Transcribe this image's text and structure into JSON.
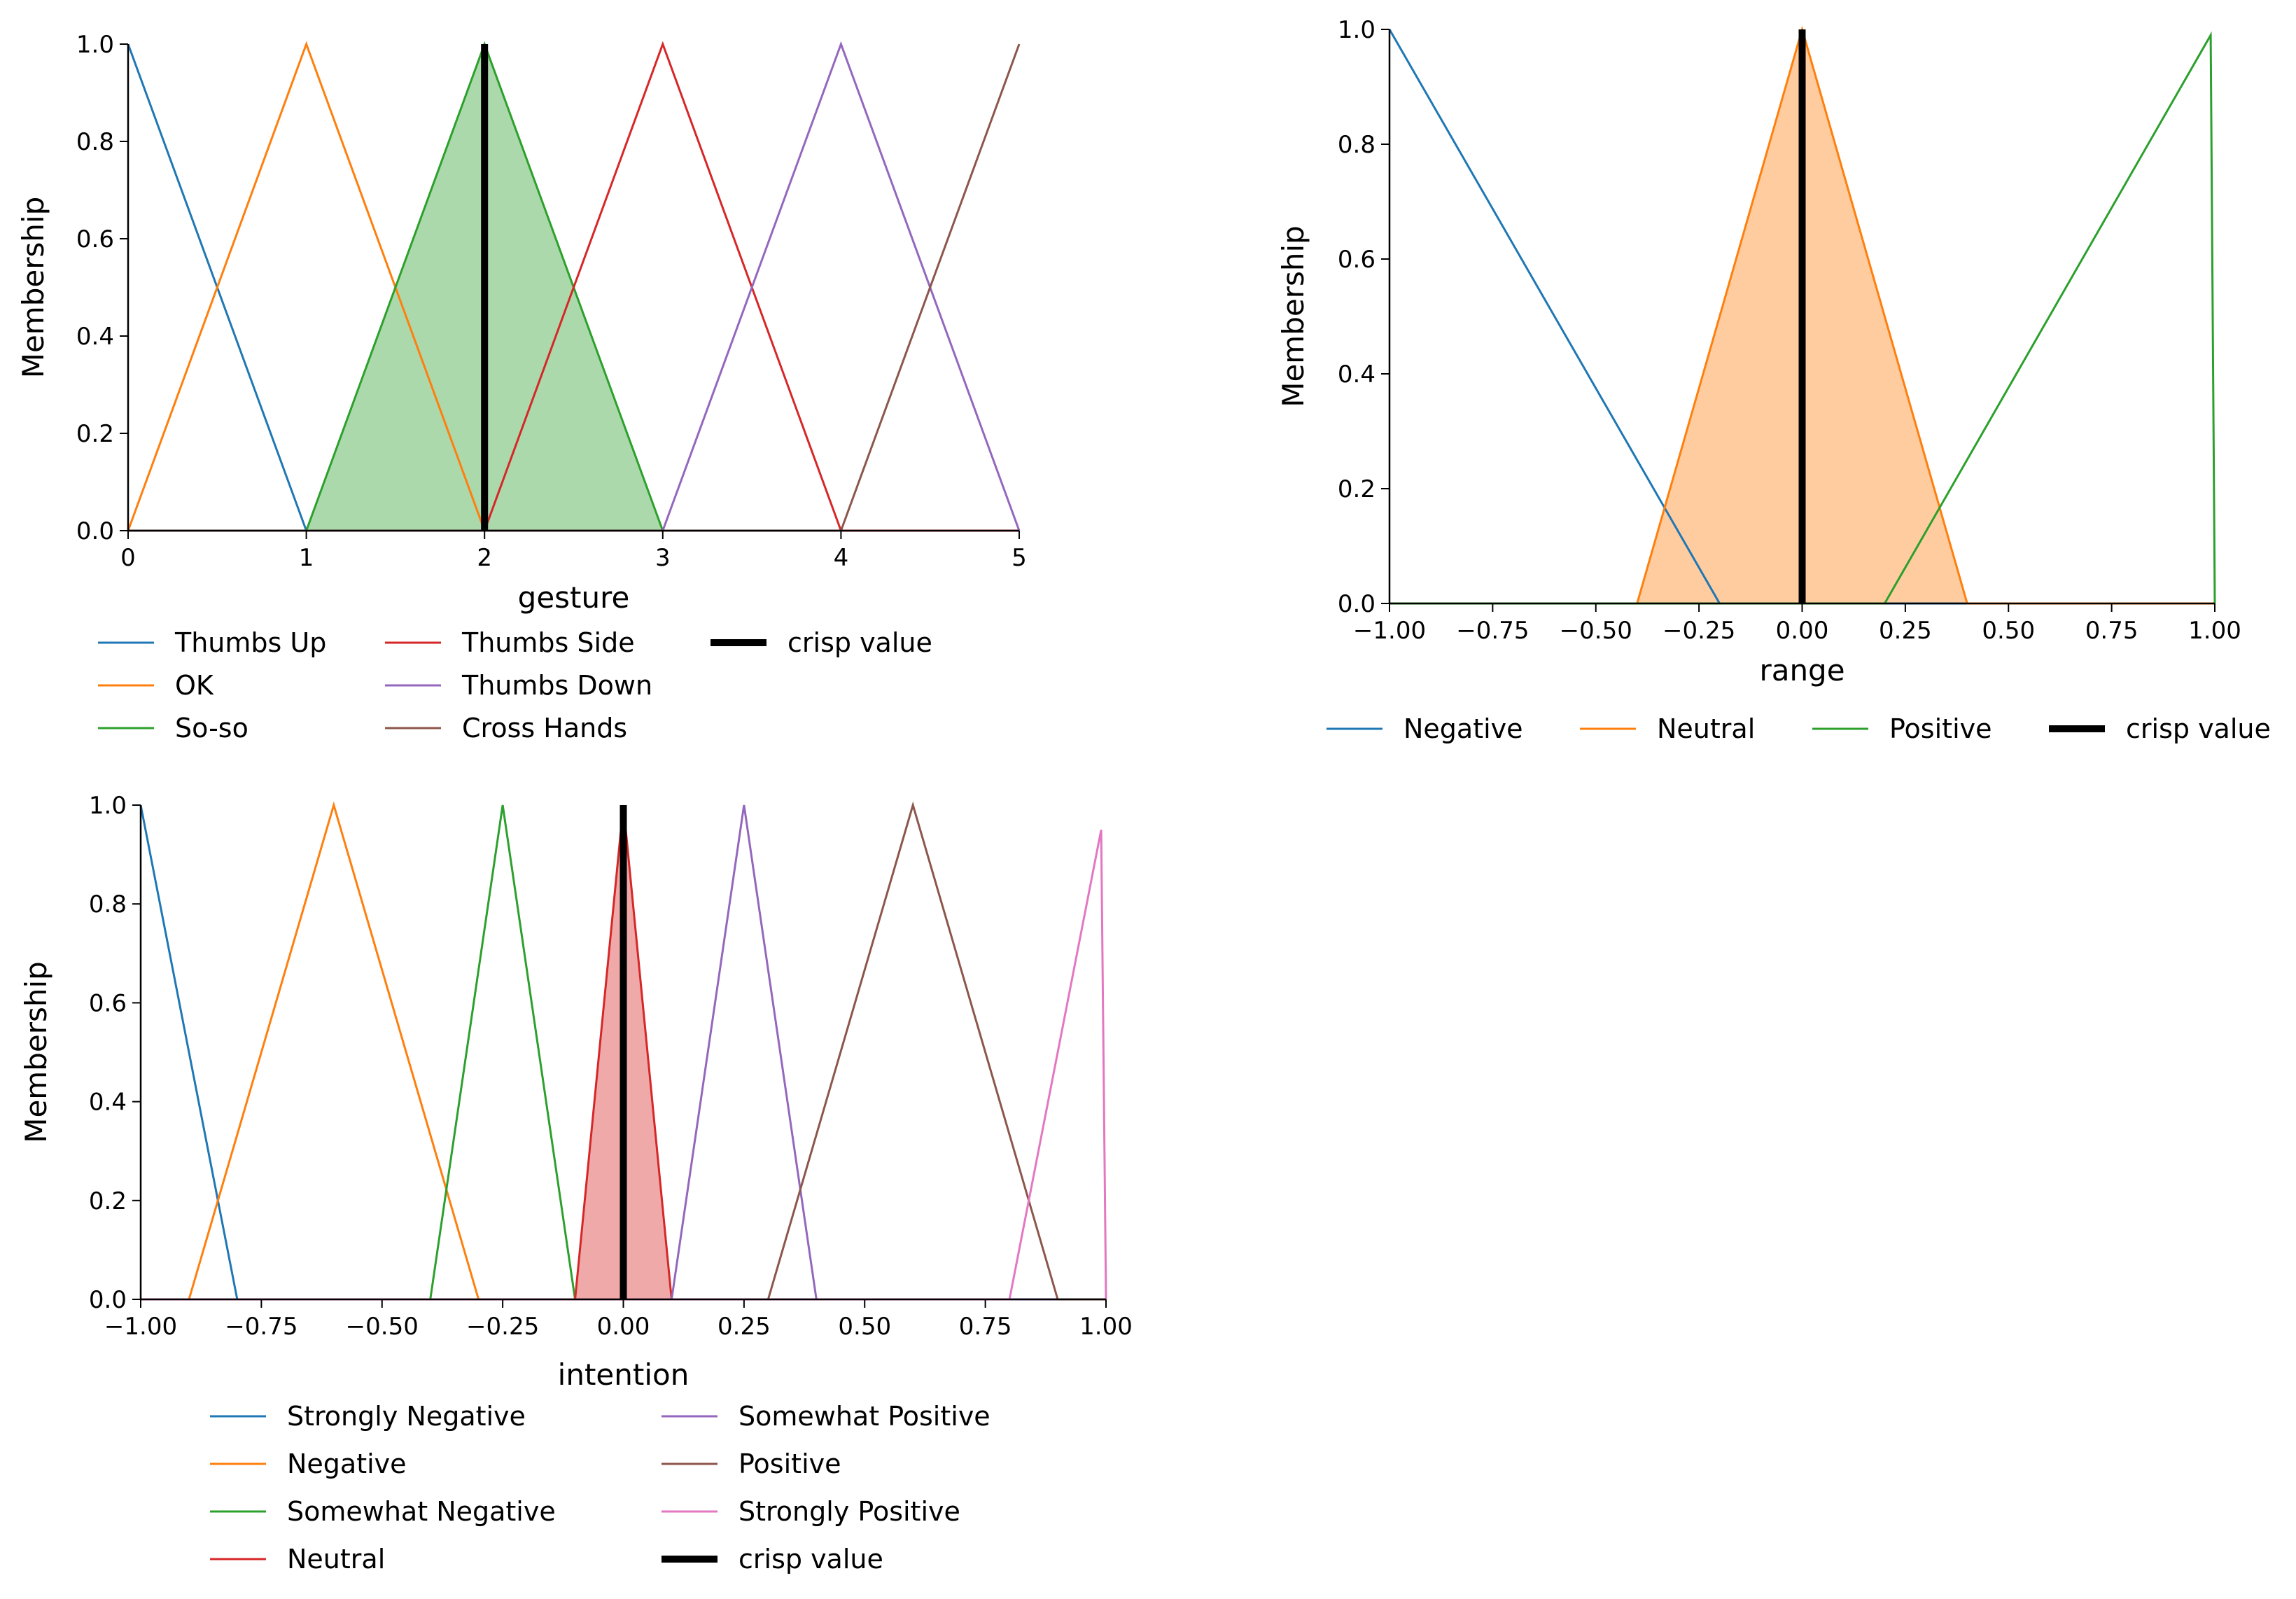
{
  "colors": {
    "tab_blue": "#1f77b4",
    "tab_orange": "#ff7f0e",
    "tab_green": "#2ca02c",
    "tab_red": "#d62728",
    "tab_purple": "#9467bd",
    "tab_brown": "#8c564b",
    "tab_pink": "#e377c2",
    "crisp": "#000000"
  },
  "chart_data": [
    {
      "type": "line",
      "id": "gesture",
      "title": "",
      "xlabel": "gesture",
      "ylabel": "Membership",
      "xlim": [
        0,
        5
      ],
      "ylim": [
        0,
        1
      ],
      "xticks": [
        0,
        1,
        2,
        3,
        4,
        5
      ],
      "xtick_labels": [
        "0",
        "1",
        "2",
        "3",
        "4",
        "5"
      ],
      "yticks": [
        0,
        0.2,
        0.4,
        0.6,
        0.8,
        1.0
      ],
      "ytick_labels": [
        "0.0",
        "0.2",
        "0.4",
        "0.6",
        "0.8",
        "1.0"
      ],
      "legend_columns": 3,
      "series": [
        {
          "name": "Thumbs Up",
          "color": "#1f77b4",
          "x": [
            0,
            1,
            5
          ],
          "y": [
            1,
            0,
            0
          ]
        },
        {
          "name": "OK",
          "color": "#ff7f0e",
          "x": [
            0,
            1,
            2,
            5
          ],
          "y": [
            0,
            1,
            0,
            0
          ]
        },
        {
          "name": "So-so",
          "color": "#2ca02c",
          "x": [
            0,
            1,
            2,
            3,
            5
          ],
          "y": [
            0,
            0,
            1,
            0,
            0
          ],
          "filled": true
        },
        {
          "name": "Thumbs Side",
          "color": "#d62728",
          "x": [
            0,
            2,
            3,
            4,
            5
          ],
          "y": [
            0,
            0,
            1,
            0,
            0
          ]
        },
        {
          "name": "Thumbs Down",
          "color": "#9467bd",
          "x": [
            0,
            3,
            4,
            5
          ],
          "y": [
            0,
            0,
            1,
            0
          ]
        },
        {
          "name": "Cross Hands",
          "color": "#8c564b",
          "x": [
            0,
            4,
            5
          ],
          "y": [
            0,
            0,
            1
          ]
        }
      ],
      "crisp_value": {
        "name": "crisp value",
        "x": 2,
        "height": 1.0
      }
    },
    {
      "type": "line",
      "id": "range",
      "title": "",
      "xlabel": "range",
      "ylabel": "Membership",
      "xlim": [
        -1,
        1
      ],
      "ylim": [
        0,
        1
      ],
      "xticks": [
        -1,
        -0.75,
        -0.5,
        -0.25,
        0,
        0.25,
        0.5,
        0.75,
        1
      ],
      "xtick_labels": [
        "−1.00",
        "−0.75",
        "−0.50",
        "−0.25",
        "0.00",
        "0.25",
        "0.50",
        "0.75",
        "1.00"
      ],
      "yticks": [
        0,
        0.2,
        0.4,
        0.6,
        0.8,
        1.0
      ],
      "ytick_labels": [
        "0.0",
        "0.2",
        "0.4",
        "0.6",
        "0.8",
        "1.0"
      ],
      "legend_columns": 4,
      "series": [
        {
          "name": "Negative",
          "color": "#1f77b4",
          "x": [
            -1,
            -0.2,
            1
          ],
          "y": [
            1,
            0,
            0
          ]
        },
        {
          "name": "Neutral",
          "color": "#ff7f0e",
          "x": [
            -1,
            -0.4,
            0,
            0.4,
            1
          ],
          "y": [
            0,
            0,
            1,
            0,
            0
          ],
          "filled": true
        },
        {
          "name": "Positive",
          "color": "#2ca02c",
          "x": [
            -1,
            0.2,
            0.99,
            1
          ],
          "y": [
            0,
            0,
            0.99,
            0
          ]
        }
      ],
      "crisp_value": {
        "name": "crisp value",
        "x": 0,
        "height": 1.0
      }
    },
    {
      "type": "line",
      "id": "intention",
      "title": "",
      "xlabel": "intention",
      "ylabel": "Membership",
      "xlim": [
        -1,
        1
      ],
      "ylim": [
        0,
        1
      ],
      "xticks": [
        -1,
        -0.75,
        -0.5,
        -0.25,
        0,
        0.25,
        0.5,
        0.75,
        1
      ],
      "xtick_labels": [
        "−1.00",
        "−0.75",
        "−0.50",
        "−0.25",
        "0.00",
        "0.25",
        "0.50",
        "0.75",
        "1.00"
      ],
      "yticks": [
        0,
        0.2,
        0.4,
        0.6,
        0.8,
        1.0
      ],
      "ytick_labels": [
        "0.0",
        "0.2",
        "0.4",
        "0.6",
        "0.8",
        "1.0"
      ],
      "legend_columns": 2,
      "series": [
        {
          "name": "Strongly Negative",
          "color": "#1f77b4",
          "x": [
            -1,
            -0.8,
            1
          ],
          "y": [
            1,
            0,
            0
          ]
        },
        {
          "name": "Negative",
          "color": "#ff7f0e",
          "x": [
            -1,
            -0.9,
            -0.6,
            -0.3,
            1
          ],
          "y": [
            0,
            0,
            1,
            0,
            0
          ]
        },
        {
          "name": "Somewhat Negative",
          "color": "#2ca02c",
          "x": [
            -1,
            -0.4,
            -0.25,
            -0.1,
            1
          ],
          "y": [
            0,
            0,
            1,
            0,
            0
          ]
        },
        {
          "name": "Neutral",
          "color": "#d62728",
          "x": [
            -1,
            -0.1,
            0,
            0.1,
            1
          ],
          "y": [
            0,
            0,
            1,
            0,
            0
          ],
          "filled": true
        },
        {
          "name": "Somewhat Positive",
          "color": "#9467bd",
          "x": [
            -1,
            0.1,
            0.25,
            0.4,
            1
          ],
          "y": [
            0,
            0,
            1,
            0,
            0
          ]
        },
        {
          "name": "Positive",
          "color": "#8c564b",
          "x": [
            -1,
            0.3,
            0.6,
            0.9,
            1
          ],
          "y": [
            0,
            0,
            1,
            0,
            0
          ]
        },
        {
          "name": "Strongly Positive",
          "color": "#e377c2",
          "x": [
            -1,
            0.8,
            0.99,
            1
          ],
          "y": [
            0,
            0,
            0.95,
            0
          ]
        }
      ],
      "crisp_value": {
        "name": "crisp value",
        "x": 0,
        "height": 1.0
      }
    }
  ]
}
